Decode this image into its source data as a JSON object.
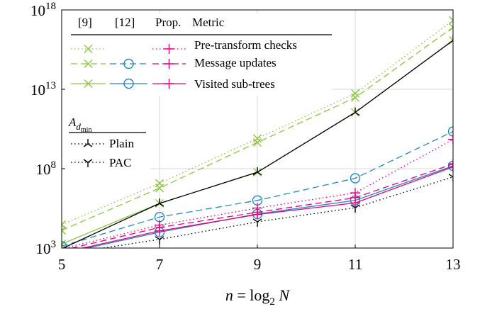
{
  "chart_data": {
    "type": "line",
    "xlabel": "n = log2 N",
    "xlabel_parts": {
      "n": "n",
      "eq": " = log",
      "sub": "2",
      "N": " N"
    },
    "x": [
      5,
      7,
      9,
      11,
      13
    ],
    "x_ticks": [
      "5",
      "7",
      "9",
      "11",
      "13"
    ],
    "y_scale": "log10",
    "ylim": [
      1000,
      1e+18
    ],
    "y_ticks": [
      {
        "base": "10",
        "exp": "3"
      },
      {
        "base": "10",
        "exp": "8"
      },
      {
        "base": "10",
        "exp": "13"
      },
      {
        "base": "10",
        "exp": "18"
      }
    ],
    "grid": true,
    "legend_placement": "top-right",
    "legend_headers": [
      "[9]",
      "[12]",
      "Prop.",
      "Metric"
    ],
    "metrics": [
      "Pre-transform checks",
      "Message updates",
      "Visited sub-trees"
    ],
    "legend2_title": {
      "main": "A",
      "sub1": "d",
      "sub2": "min"
    },
    "legend2_items": [
      "Plain",
      "PAC"
    ],
    "colors": {
      "ref9": "#8cc63f",
      "ref12": "#1f87c8",
      "prop": "#e6007e",
      "adm": "#000000"
    },
    "series": [
      {
        "source": "[9]",
        "metric": "Pre-transform checks",
        "style": "dotted",
        "marker": "x",
        "values": [
          30000.0,
          12000000.0,
          8000000000.0,
          5500000000000.0,
          2.2e+17
        ]
      },
      {
        "source": "[9]",
        "metric": "Message updates",
        "style": "dashed",
        "marker": "x",
        "values": [
          13000.0,
          6000000.0,
          4500000000.0,
          3000000000000.0,
          8e+16
        ]
      },
      {
        "source": "[9]",
        "metric": "Visited sub-trees",
        "style": "solid",
        "marker": "x",
        "values": [
          1800,
          650000.0,
          60000000.0,
          350000000000.0,
          1.2e+16
        ]
      },
      {
        "source": "[12]",
        "metric": "Message updates",
        "style": "dashed",
        "marker": "o",
        "values": [
          1300,
          90000.0,
          1000000.0,
          25000000.0,
          22000000000.0
        ]
      },
      {
        "source": "[12]",
        "metric": "Visited sub-trees",
        "style": "solid",
        "marker": "o",
        "values": [
          450,
          10000.0,
          140000.0,
          1000000.0,
          150000000.0
        ]
      },
      {
        "source": "Prop.",
        "metric": "Pre-transform checks",
        "style": "dotted",
        "marker": "+",
        "values": [
          900,
          28000.0,
          330000.0,
          3000000.0,
          7000000000.0
        ]
      },
      {
        "source": "Prop.",
        "metric": "Message updates",
        "style": "dashed",
        "marker": "+",
        "values": [
          700,
          20000.0,
          180000.0,
          1500000.0,
          200000000.0
        ]
      },
      {
        "source": "Prop.",
        "metric": "Visited sub-trees",
        "style": "solid",
        "marker": "+",
        "values": [
          500,
          12000.0,
          130000.0,
          700000.0,
          130000000.0
        ]
      },
      {
        "source": "Plain",
        "metric": "",
        "style": "solid",
        "marker": "tri",
        "values": [
          900,
          650000.0,
          60000000.0,
          350000000000.0,
          1.2e+16
        ]
      },
      {
        "source": "PAC",
        "metric": "",
        "style": "dotted",
        "marker": "tri-down",
        "values": [
          400,
          3500,
          45000.0,
          350000.0,
          30000000.0
        ]
      }
    ]
  }
}
